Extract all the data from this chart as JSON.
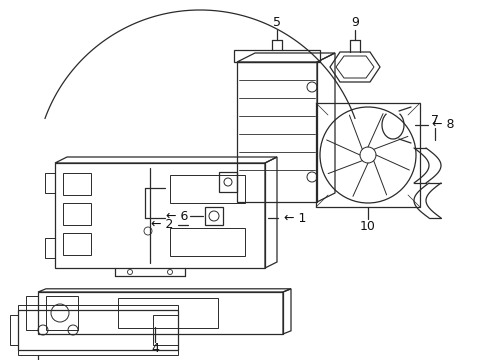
{
  "bg_color": "#ffffff",
  "line_color": "#2a2a2a",
  "label_color": "#111111",
  "figsize": [
    4.9,
    3.6
  ],
  "dpi": 100,
  "label_fontsize": 9
}
